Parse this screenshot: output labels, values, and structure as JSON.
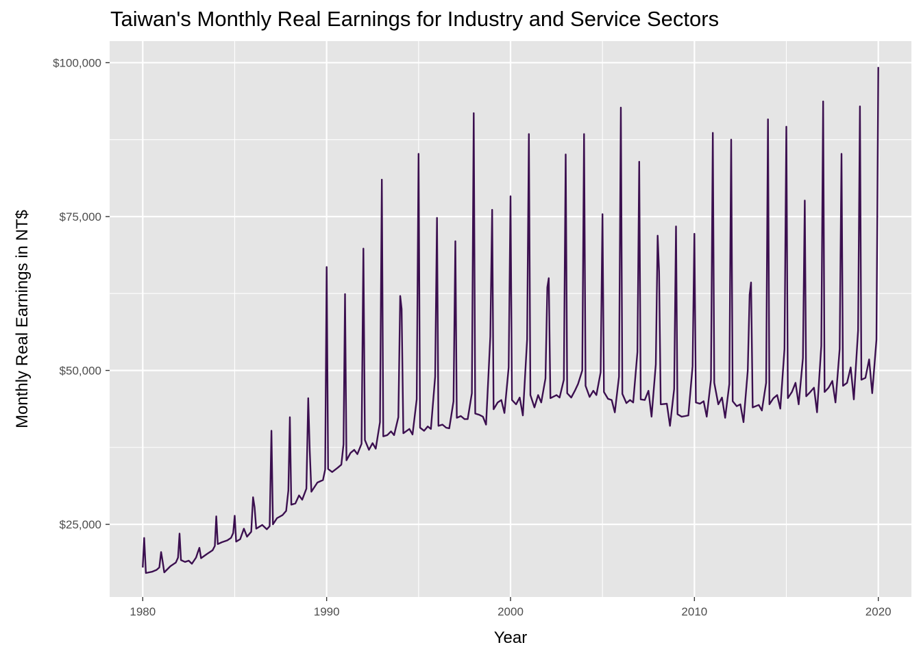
{
  "chart_data": {
    "type": "line",
    "title": "Taiwan's Monthly Real Earnings for Industry and Service Sectors",
    "xlabel": "Year",
    "ylabel": "Monthly Real Earnings in NT$",
    "xlim": [
      1978.2,
      2021.8
    ],
    "ylim": [
      13200,
      103500
    ],
    "x_ticks": [
      1980,
      1990,
      2000,
      2010,
      2020
    ],
    "y_ticks": [
      25000,
      50000,
      75000,
      100000
    ],
    "y_tick_labels": [
      "$25,000",
      "$50,000",
      "$75,000",
      "$100,000"
    ],
    "grid": true,
    "line_color": "#3b0f4f",
    "panel_color": "#e5e5e5",
    "series": [
      {
        "note": "Approximate anchor points read off the chart; each is [year, earnings]. Annual spikes occur near each new year.",
        "points": [
          [
            1980.0,
            18000
          ],
          [
            1980.08,
            22800
          ],
          [
            1980.17,
            17100
          ],
          [
            1980.5,
            17300
          ],
          [
            1980.75,
            17600
          ],
          [
            1980.9,
            18000
          ],
          [
            1981.0,
            20500
          ],
          [
            1981.08,
            19000
          ],
          [
            1981.17,
            17200
          ],
          [
            1981.5,
            18200
          ],
          [
            1981.8,
            18800
          ],
          [
            1981.92,
            19600
          ],
          [
            1982.0,
            23500
          ],
          [
            1982.08,
            19200
          ],
          [
            1982.3,
            18900
          ],
          [
            1982.5,
            19100
          ],
          [
            1982.67,
            18600
          ],
          [
            1982.9,
            19600
          ],
          [
            1983.0,
            20500
          ],
          [
            1983.08,
            21200
          ],
          [
            1983.17,
            19500
          ],
          [
            1983.5,
            20200
          ],
          [
            1983.8,
            20800
          ],
          [
            1983.92,
            21500
          ],
          [
            1984.0,
            26300
          ],
          [
            1984.08,
            21800
          ],
          [
            1984.3,
            22100
          ],
          [
            1984.6,
            22400
          ],
          [
            1984.8,
            22800
          ],
          [
            1984.92,
            23600
          ],
          [
            1985.0,
            26400
          ],
          [
            1985.08,
            22200
          ],
          [
            1985.3,
            22600
          ],
          [
            1985.5,
            24300
          ],
          [
            1985.67,
            23000
          ],
          [
            1985.9,
            23800
          ],
          [
            1986.0,
            29400
          ],
          [
            1986.08,
            27800
          ],
          [
            1986.17,
            24300
          ],
          [
            1986.5,
            24900
          ],
          [
            1986.75,
            24200
          ],
          [
            1986.9,
            24700
          ],
          [
            1987.0,
            40200
          ],
          [
            1987.08,
            25000
          ],
          [
            1987.3,
            26000
          ],
          [
            1987.6,
            26500
          ],
          [
            1987.8,
            27200
          ],
          [
            1987.92,
            30500
          ],
          [
            1988.0,
            42400
          ],
          [
            1988.08,
            28200
          ],
          [
            1988.3,
            28400
          ],
          [
            1988.5,
            29700
          ],
          [
            1988.67,
            29000
          ],
          [
            1988.9,
            30800
          ],
          [
            1989.0,
            45500
          ],
          [
            1989.08,
            37000
          ],
          [
            1989.17,
            30300
          ],
          [
            1989.5,
            31800
          ],
          [
            1989.8,
            32200
          ],
          [
            1989.92,
            33900
          ],
          [
            1990.0,
            66800
          ],
          [
            1990.08,
            34000
          ],
          [
            1990.3,
            33500
          ],
          [
            1990.6,
            34200
          ],
          [
            1990.8,
            34700
          ],
          [
            1990.92,
            38000
          ],
          [
            1991.0,
            62400
          ],
          [
            1991.08,
            35400
          ],
          [
            1991.3,
            36600
          ],
          [
            1991.5,
            37100
          ],
          [
            1991.67,
            36400
          ],
          [
            1991.9,
            38100
          ],
          [
            1992.0,
            69800
          ],
          [
            1992.08,
            38700
          ],
          [
            1992.3,
            37100
          ],
          [
            1992.5,
            38200
          ],
          [
            1992.67,
            37300
          ],
          [
            1992.9,
            41600
          ],
          [
            1993.0,
            81000
          ],
          [
            1993.08,
            39300
          ],
          [
            1993.3,
            39500
          ],
          [
            1993.5,
            40100
          ],
          [
            1993.67,
            39500
          ],
          [
            1993.9,
            42400
          ],
          [
            1994.0,
            62100
          ],
          [
            1994.08,
            60000
          ],
          [
            1994.17,
            39800
          ],
          [
            1994.5,
            40500
          ],
          [
            1994.67,
            39600
          ],
          [
            1994.9,
            45300
          ],
          [
            1995.0,
            85200
          ],
          [
            1995.08,
            40700
          ],
          [
            1995.3,
            40200
          ],
          [
            1995.5,
            40900
          ],
          [
            1995.67,
            40500
          ],
          [
            1995.9,
            49000
          ],
          [
            1996.0,
            74800
          ],
          [
            1996.08,
            41000
          ],
          [
            1996.3,
            41200
          ],
          [
            1996.5,
            40700
          ],
          [
            1996.67,
            40600
          ],
          [
            1996.9,
            45000
          ],
          [
            1997.0,
            71000
          ],
          [
            1997.08,
            42300
          ],
          [
            1997.3,
            42600
          ],
          [
            1997.5,
            42100
          ],
          [
            1997.67,
            42100
          ],
          [
            1997.9,
            46300
          ],
          [
            1998.0,
            91800
          ],
          [
            1998.08,
            43000
          ],
          [
            1998.3,
            42800
          ],
          [
            1998.5,
            42500
          ],
          [
            1998.67,
            41200
          ],
          [
            1998.9,
            55500
          ],
          [
            1999.0,
            76100
          ],
          [
            1999.08,
            43700
          ],
          [
            1999.3,
            44800
          ],
          [
            1999.5,
            45200
          ],
          [
            1999.67,
            43100
          ],
          [
            1999.9,
            50500
          ],
          [
            2000.0,
            78300
          ],
          [
            2000.08,
            45200
          ],
          [
            2000.3,
            44500
          ],
          [
            2000.5,
            45600
          ],
          [
            2000.67,
            42700
          ],
          [
            2000.9,
            55000
          ],
          [
            2001.0,
            88400
          ],
          [
            2001.08,
            46000
          ],
          [
            2001.3,
            44000
          ],
          [
            2001.5,
            46000
          ],
          [
            2001.67,
            44800
          ],
          [
            2001.9,
            48700
          ],
          [
            2002.0,
            63500
          ],
          [
            2002.08,
            65000
          ],
          [
            2002.17,
            45500
          ],
          [
            2002.5,
            46000
          ],
          [
            2002.67,
            45600
          ],
          [
            2002.9,
            48500
          ],
          [
            2003.0,
            85100
          ],
          [
            2003.08,
            46300
          ],
          [
            2003.3,
            45600
          ],
          [
            2003.5,
            46700
          ],
          [
            2003.67,
            47800
          ],
          [
            2003.9,
            50000
          ],
          [
            2004.0,
            88400
          ],
          [
            2004.08,
            47500
          ],
          [
            2004.3,
            45700
          ],
          [
            2004.5,
            46700
          ],
          [
            2004.67,
            46000
          ],
          [
            2004.9,
            49700
          ],
          [
            2005.0,
            75400
          ],
          [
            2005.08,
            46500
          ],
          [
            2005.3,
            45400
          ],
          [
            2005.5,
            45200
          ],
          [
            2005.67,
            43200
          ],
          [
            2005.9,
            49000
          ],
          [
            2006.0,
            92700
          ],
          [
            2006.08,
            46200
          ],
          [
            2006.3,
            44700
          ],
          [
            2006.5,
            45200
          ],
          [
            2006.67,
            44800
          ],
          [
            2006.9,
            53000
          ],
          [
            2007.0,
            83900
          ],
          [
            2007.08,
            45300
          ],
          [
            2007.3,
            45200
          ],
          [
            2007.5,
            46700
          ],
          [
            2007.67,
            42500
          ],
          [
            2007.9,
            51000
          ],
          [
            2008.0,
            71900
          ],
          [
            2008.08,
            66000
          ],
          [
            2008.17,
            44500
          ],
          [
            2008.5,
            44600
          ],
          [
            2008.67,
            41000
          ],
          [
            2008.9,
            47000
          ],
          [
            2009.0,
            73400
          ],
          [
            2009.08,
            42900
          ],
          [
            2009.3,
            42500
          ],
          [
            2009.5,
            42600
          ],
          [
            2009.67,
            42700
          ],
          [
            2009.9,
            50700
          ],
          [
            2010.0,
            72200
          ],
          [
            2010.08,
            44800
          ],
          [
            2010.3,
            44600
          ],
          [
            2010.5,
            45000
          ],
          [
            2010.67,
            42500
          ],
          [
            2010.9,
            48500
          ],
          [
            2011.0,
            88600
          ],
          [
            2011.08,
            48000
          ],
          [
            2011.3,
            44500
          ],
          [
            2011.5,
            45600
          ],
          [
            2011.67,
            42300
          ],
          [
            2011.9,
            47800
          ],
          [
            2012.0,
            87500
          ],
          [
            2012.08,
            45000
          ],
          [
            2012.3,
            44200
          ],
          [
            2012.5,
            44500
          ],
          [
            2012.67,
            41600
          ],
          [
            2012.9,
            50000
          ],
          [
            2013.0,
            62300
          ],
          [
            2013.08,
            64300
          ],
          [
            2013.17,
            44000
          ],
          [
            2013.5,
            44400
          ],
          [
            2013.67,
            43500
          ],
          [
            2013.9,
            48000
          ],
          [
            2014.0,
            90800
          ],
          [
            2014.08,
            44500
          ],
          [
            2014.3,
            45500
          ],
          [
            2014.5,
            46000
          ],
          [
            2014.67,
            43800
          ],
          [
            2014.9,
            53500
          ],
          [
            2015.0,
            89600
          ],
          [
            2015.08,
            45500
          ],
          [
            2015.3,
            46500
          ],
          [
            2015.5,
            48000
          ],
          [
            2015.67,
            44500
          ],
          [
            2015.9,
            52000
          ],
          [
            2016.0,
            77600
          ],
          [
            2016.08,
            45800
          ],
          [
            2016.3,
            46500
          ],
          [
            2016.5,
            47200
          ],
          [
            2016.67,
            43200
          ],
          [
            2016.9,
            54000
          ],
          [
            2017.0,
            93700
          ],
          [
            2017.08,
            46500
          ],
          [
            2017.3,
            47200
          ],
          [
            2017.5,
            48300
          ],
          [
            2017.67,
            44800
          ],
          [
            2017.9,
            53500
          ],
          [
            2018.0,
            85200
          ],
          [
            2018.08,
            47500
          ],
          [
            2018.3,
            48000
          ],
          [
            2018.5,
            50500
          ],
          [
            2018.67,
            45300
          ],
          [
            2018.9,
            56500
          ],
          [
            2019.0,
            92900
          ],
          [
            2019.08,
            48500
          ],
          [
            2019.3,
            48800
          ],
          [
            2019.5,
            51800
          ],
          [
            2019.67,
            46300
          ],
          [
            2019.9,
            55000
          ],
          [
            2020.0,
            99300
          ]
        ]
      }
    ]
  }
}
